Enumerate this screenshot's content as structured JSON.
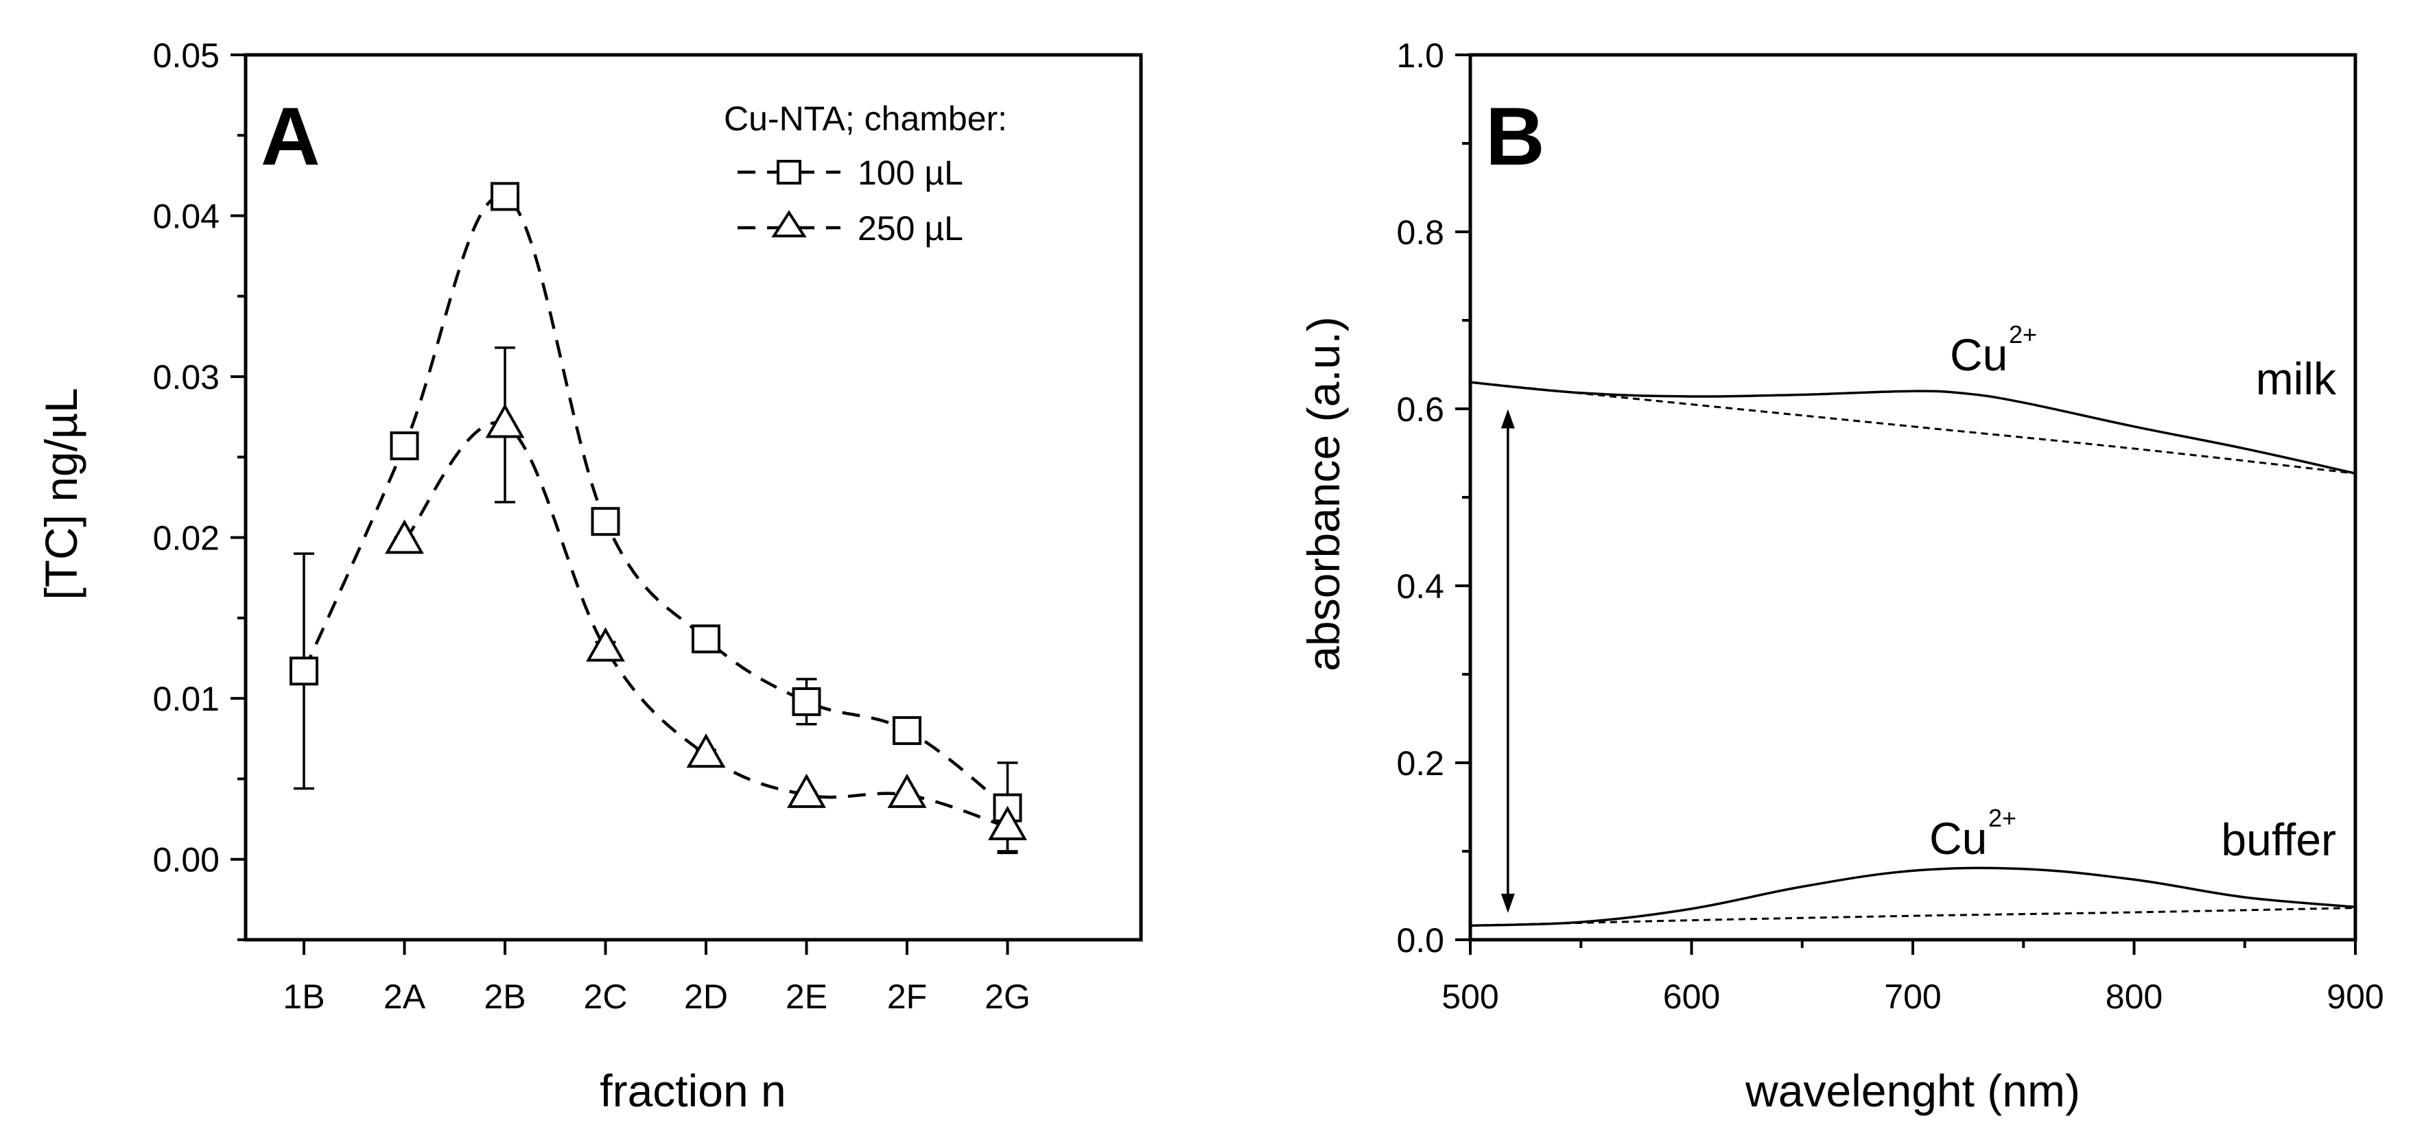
{
  "chart_data": [
    {
      "panel": "A",
      "type": "line",
      "xlabel": "fraction n",
      "ylabel": "[TC] ng/µL",
      "categories": [
        "1B",
        "2A",
        "2B",
        "2C",
        "2D",
        "2E",
        "2F",
        "2G"
      ],
      "ylim": [
        -0.005,
        0.05
      ],
      "yticks": [
        0.0,
        0.01,
        0.02,
        0.03,
        0.04,
        0.05
      ],
      "ytick_labels": [
        "0.00",
        "0.01",
        "0.02",
        "0.03",
        "0.04",
        "0.05"
      ],
      "legend_title": "Cu-NTA; chamber:",
      "legend_position": "top-right",
      "series": [
        {
          "name": "100 µL",
          "marker": "square",
          "values": [
            0.0117,
            0.0257,
            0.0412,
            0.021,
            0.0137,
            0.0098,
            0.008,
            0.0032
          ],
          "errors": [
            0.0073,
            0.0005,
            0.0005,
            0.0008,
            0.0008,
            0.0014,
            0.0006,
            0.0028
          ]
        },
        {
          "name": "250 µL",
          "marker": "triangle",
          "values": [
            null,
            0.0198,
            0.027,
            0.0131,
            0.0065,
            0.004,
            0.004,
            0.002
          ],
          "errors": [
            null,
            0.0002,
            0.0048,
            0.0004,
            0.0003,
            0.0002,
            0.0002,
            0.0015
          ]
        }
      ]
    },
    {
      "panel": "B",
      "type": "line",
      "xlabel": "wavelenght (nm)",
      "ylabel": "absorbance (a.u.)",
      "xlim": [
        500,
        900
      ],
      "ylim": [
        0.0,
        1.0
      ],
      "xticks": [
        500,
        600,
        700,
        800,
        900
      ],
      "xtick_labels": [
        "500",
        "600",
        "700",
        "800",
        "900"
      ],
      "yticks": [
        0.0,
        0.2,
        0.4,
        0.6,
        0.8,
        1.0
      ],
      "ytick_labels": [
        "0.0",
        "0.2",
        "0.4",
        "0.6",
        "0.8",
        "1.0"
      ],
      "series": [
        {
          "name": "milk",
          "style": "solid",
          "x": [
            500,
            550,
            600,
            650,
            700,
            725,
            750,
            800,
            850,
            900
          ],
          "y": [
            0.63,
            0.618,
            0.614,
            0.616,
            0.62,
            0.617,
            0.607,
            0.58,
            0.555,
            0.527
          ]
        },
        {
          "name": "milk baseline",
          "style": "dashed",
          "x": [
            500,
            600,
            700,
            800,
            900
          ],
          "y": [
            0.63,
            0.605,
            0.58,
            0.555,
            0.527
          ]
        },
        {
          "name": "buffer",
          "style": "solid",
          "x": [
            500,
            550,
            600,
            650,
            700,
            750,
            800,
            850,
            900
          ],
          "y": [
            0.016,
            0.02,
            0.035,
            0.06,
            0.078,
            0.08,
            0.068,
            0.048,
            0.037
          ]
        },
        {
          "name": "buffer baseline",
          "style": "dashed",
          "x": [
            500,
            600,
            700,
            800,
            900
          ],
          "y": [
            0.016,
            0.022,
            0.027,
            0.031,
            0.036
          ]
        }
      ],
      "labels": {
        "milk": "milk",
        "buffer": "buffer",
        "cu_base": "Cu",
        "cu_charge": "2+"
      },
      "arrow": {
        "x": 517,
        "y_top": 0.595,
        "y_bottom": 0.035
      }
    }
  ]
}
